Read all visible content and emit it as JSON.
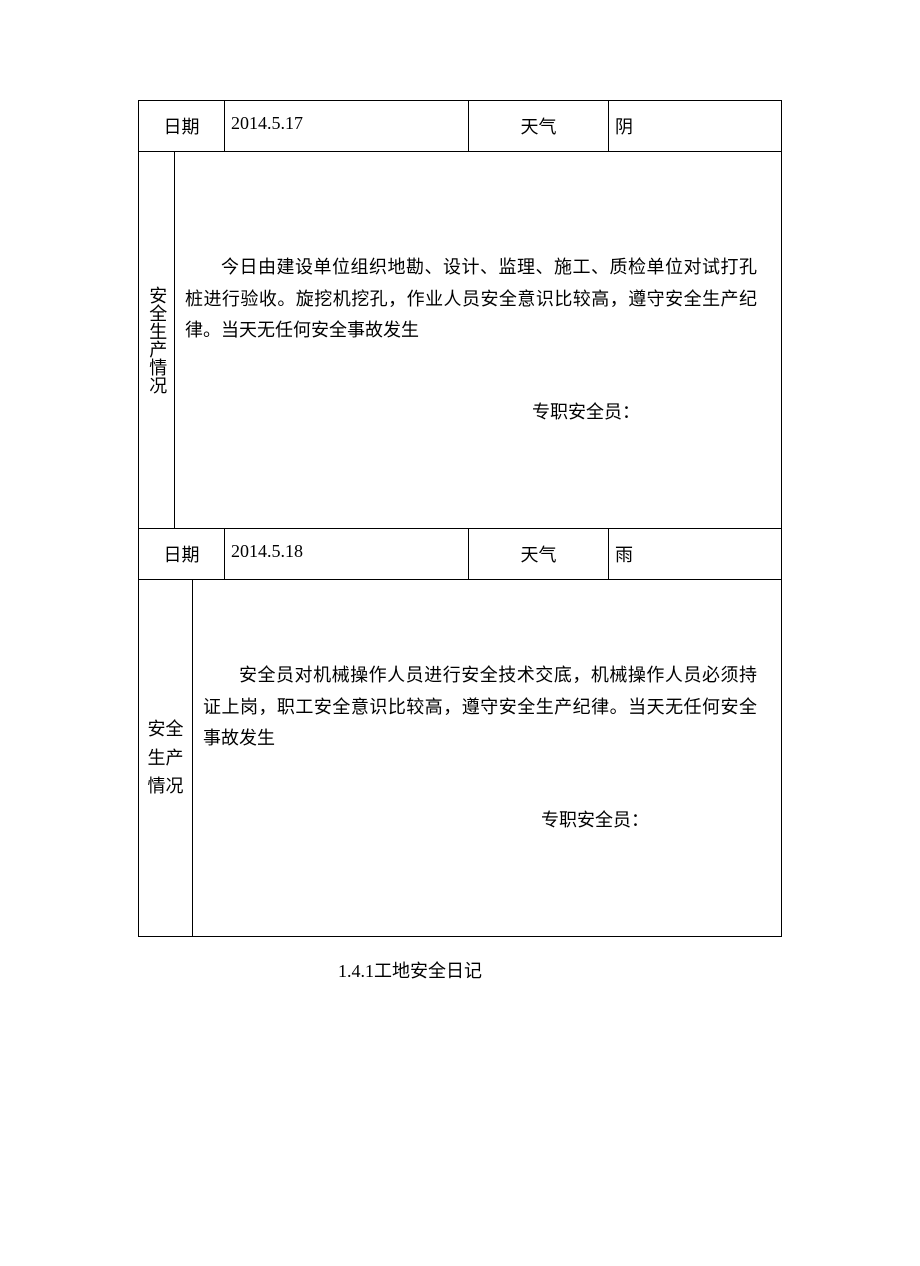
{
  "colors": {
    "background": "#ffffff",
    "text": "#000000",
    "border": "#000000"
  },
  "typography": {
    "font_family": "SimSun",
    "base_fontsize": 18,
    "line_height": 1.75
  },
  "table": {
    "border_width": 1,
    "header_row_height": 48
  },
  "labels": {
    "date": "日期",
    "weather": "天气",
    "section": "安全生产情况",
    "section_alt": "安全\n生产\n情况",
    "signature": "专职安全员：",
    "footer": "1.4.1工地安全日记"
  },
  "entries": [
    {
      "date": "2014.5.17",
      "weather": "阴",
      "content": "今日由建设单位组织地勘、设计、监理、施工、质检单位对试打孔桩进行验收。旋挖机挖孔，作业人员安全意识比较高，遵守安全生产纪律。当天无任何安全事故发生",
      "side_label_style": "vertical"
    },
    {
      "date": "2014.5.18",
      "weather": "雨",
      "content": "安全员对机械操作人员进行安全技术交底，机械操作人员必须持证上岗，职工安全意识比较高，遵守安全生产纪律。当天无任何安全事故发生",
      "side_label_style": "wide"
    }
  ]
}
